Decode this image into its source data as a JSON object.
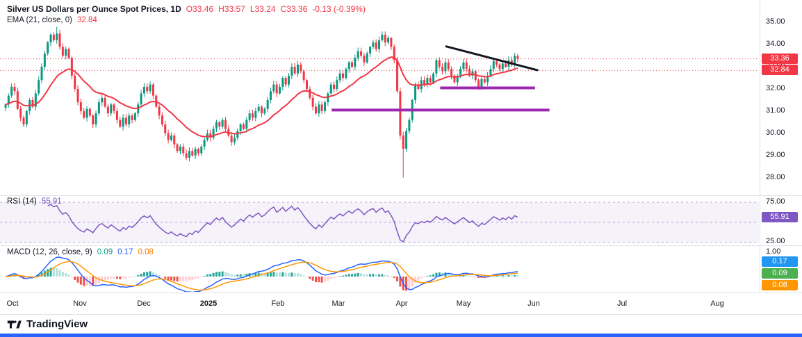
{
  "header": {
    "symbol_title": "Silver US Dollars per Ounce Spot Prices, 1D",
    "ohlc": {
      "open": "O33.46",
      "high": "H33.57",
      "low": "L33.24",
      "close": "C33.36",
      "change": "-0.13 (-0.39%)"
    },
    "ema_label": "EMA (21, close, 0)",
    "ema_value": "32.84"
  },
  "panels": {
    "rsi": {
      "label": "RSI (14)",
      "value": "55.91"
    },
    "macd": {
      "label": "MACD (12, 26, close, 9)",
      "hist_value": "0.09",
      "macd_value": "0.17",
      "signal_value": "0.08"
    }
  },
  "axis": {
    "price_ticks": [
      "35.00",
      "34.00",
      "33.00",
      "32.00",
      "31.00",
      "30.00",
      "29.00",
      "28.00"
    ],
    "rsi_ticks": [
      "75.00",
      "25.00"
    ],
    "macd_ticks": [
      "1.00"
    ],
    "badges": {
      "price": "33.36",
      "ema": "32.84",
      "rsi": "55.91",
      "macd": "0.17",
      "hist": "0.09",
      "signal": "0.08"
    }
  },
  "footer": {
    "brand": "TradingView"
  },
  "colors": {
    "up": "#089981",
    "down": "#F23645",
    "ema": "#F23645",
    "rsi": "#7E57C2",
    "rsi_band": "rgba(126,87,194,0.08)",
    "rsi_dash": "rgba(126,87,194,0.55)",
    "macd": "#2962FF",
    "macd_signal": "#FF9800",
    "hist_up": "#26A69A",
    "hist_up_faded": "#B2DFDB",
    "hist_dn": "#EF5350",
    "hist_dn_faded": "#FFCDD2",
    "badge_price": "#F23645",
    "badge_rsi": "#7E57C2",
    "badge_macd": "#2196F3",
    "badge_hist": "#4CAF50",
    "badge_signal": "#FF9800",
    "accent": "#2962FF",
    "separator": "#E0E3EB"
  },
  "chart_data": {
    "type": "candlestick",
    "title": "Silver US Dollars per Ounce Spot Prices",
    "timeframe": "1D",
    "last_candle": {
      "open": 33.46,
      "high": 33.57,
      "low": 33.24,
      "close": 33.36,
      "change": -0.13,
      "change_pct": -0.39
    },
    "indicators": {
      "ema": {
        "period": 21,
        "source": "close",
        "offset": 0,
        "value": 32.84
      },
      "rsi": {
        "period": 14,
        "value": 55.91,
        "hlines": [
          75,
          50,
          25
        ],
        "range": [
          25,
          75
        ]
      },
      "macd": {
        "fast": 12,
        "slow": 26,
        "source": "close",
        "signal_period": 9,
        "macd_value": 0.17,
        "signal_value": 0.08,
        "hist_value": 0.09,
        "axis_max": 1.0
      }
    },
    "price_axis_ticks": [
      35,
      34,
      33,
      32,
      31,
      30,
      29,
      28
    ],
    "price_range_visible": [
      27.8,
      35.4
    ],
    "months": [
      "Oct",
      "Nov",
      "Dec",
      "2025",
      "Feb",
      "Mar",
      "Apr",
      "May",
      "Jun",
      "Jul",
      "Aug"
    ],
    "closes": [
      31.3,
      31.7,
      32.1,
      31.9,
      31.1,
      30.7,
      30.4,
      31.0,
      31.5,
      31.2,
      31.8,
      32.4,
      33.0,
      33.6,
      34.1,
      34.45,
      34.2,
      34.5,
      33.9,
      33.5,
      33.8,
      33.4,
      32.6,
      32.0,
      31.4,
      31.0,
      30.7,
      31.1,
      30.8,
      30.4,
      30.9,
      31.4,
      31.6,
      31.2,
      30.9,
      31.3,
      31.0,
      30.6,
      30.3,
      30.7,
      30.4,
      30.8,
      30.6,
      30.9,
      31.3,
      31.8,
      32.1,
      31.9,
      32.2,
      31.7,
      31.2,
      30.8,
      30.4,
      30.0,
      29.7,
      29.9,
      29.5,
      29.2,
      29.4,
      29.1,
      28.9,
      29.2,
      29.0,
      29.3,
      29.1,
      29.4,
      29.7,
      30.0,
      29.8,
      30.2,
      30.5,
      30.3,
      30.6,
      30.2,
      29.9,
      29.6,
      29.8,
      30.1,
      30.4,
      30.2,
      30.6,
      30.9,
      30.7,
      31.0,
      31.2,
      30.9,
      31.1,
      31.5,
      31.9,
      32.2,
      31.8,
      32.1,
      32.5,
      32.2,
      32.6,
      33.0,
      32.7,
      33.1,
      32.8,
      32.4,
      32.0,
      31.6,
      31.2,
      30.9,
      31.3,
      31.0,
      31.4,
      31.8,
      32.2,
      32.0,
      32.4,
      32.7,
      32.5,
      32.9,
      33.2,
      33.0,
      33.4,
      33.7,
      33.5,
      33.2,
      33.6,
      33.9,
      34.1,
      33.8,
      34.2,
      34.45,
      34.1,
      34.3,
      33.9,
      33.3,
      31.9,
      29.9,
      29.3,
      30.1,
      30.6,
      31.5,
      32.2,
      32.0,
      32.4,
      32.2,
      32.5,
      32.3,
      32.7,
      33.3,
      33.0,
      32.8,
      33.2,
      32.9,
      32.6,
      32.3,
      32.6,
      32.9,
      33.2,
      32.9,
      32.6,
      32.8,
      32.4,
      32.1,
      32.45,
      32.3,
      32.6,
      32.9,
      33.25,
      33.1,
      32.9,
      33.15,
      33.0,
      33.3,
      33.1,
      33.49,
      33.36
    ],
    "wick_overrides": {
      "17": {
        "high": 34.8
      },
      "125": {
        "high": 34.6
      },
      "132": {
        "low": 28.0
      }
    },
    "price_lines": [
      33.36,
      32.84
    ],
    "drawings": [
      {
        "type": "horizontal-ray",
        "price": 31.05,
        "x1_frac": 0.437,
        "x2_frac": 0.724,
        "color": "#9C27B0",
        "width": 4
      },
      {
        "type": "horizontal-ray",
        "price": 32.05,
        "x1_frac": 0.58,
        "x2_frac": 0.705,
        "color": "#9C27B0",
        "width": 4
      },
      {
        "type": "trendline",
        "p1": {
          "x_frac": 0.588,
          "price": 33.92
        },
        "p2": {
          "x_frac": 0.708,
          "price": 32.85
        },
        "color": "#131722",
        "width": 3
      }
    ]
  }
}
